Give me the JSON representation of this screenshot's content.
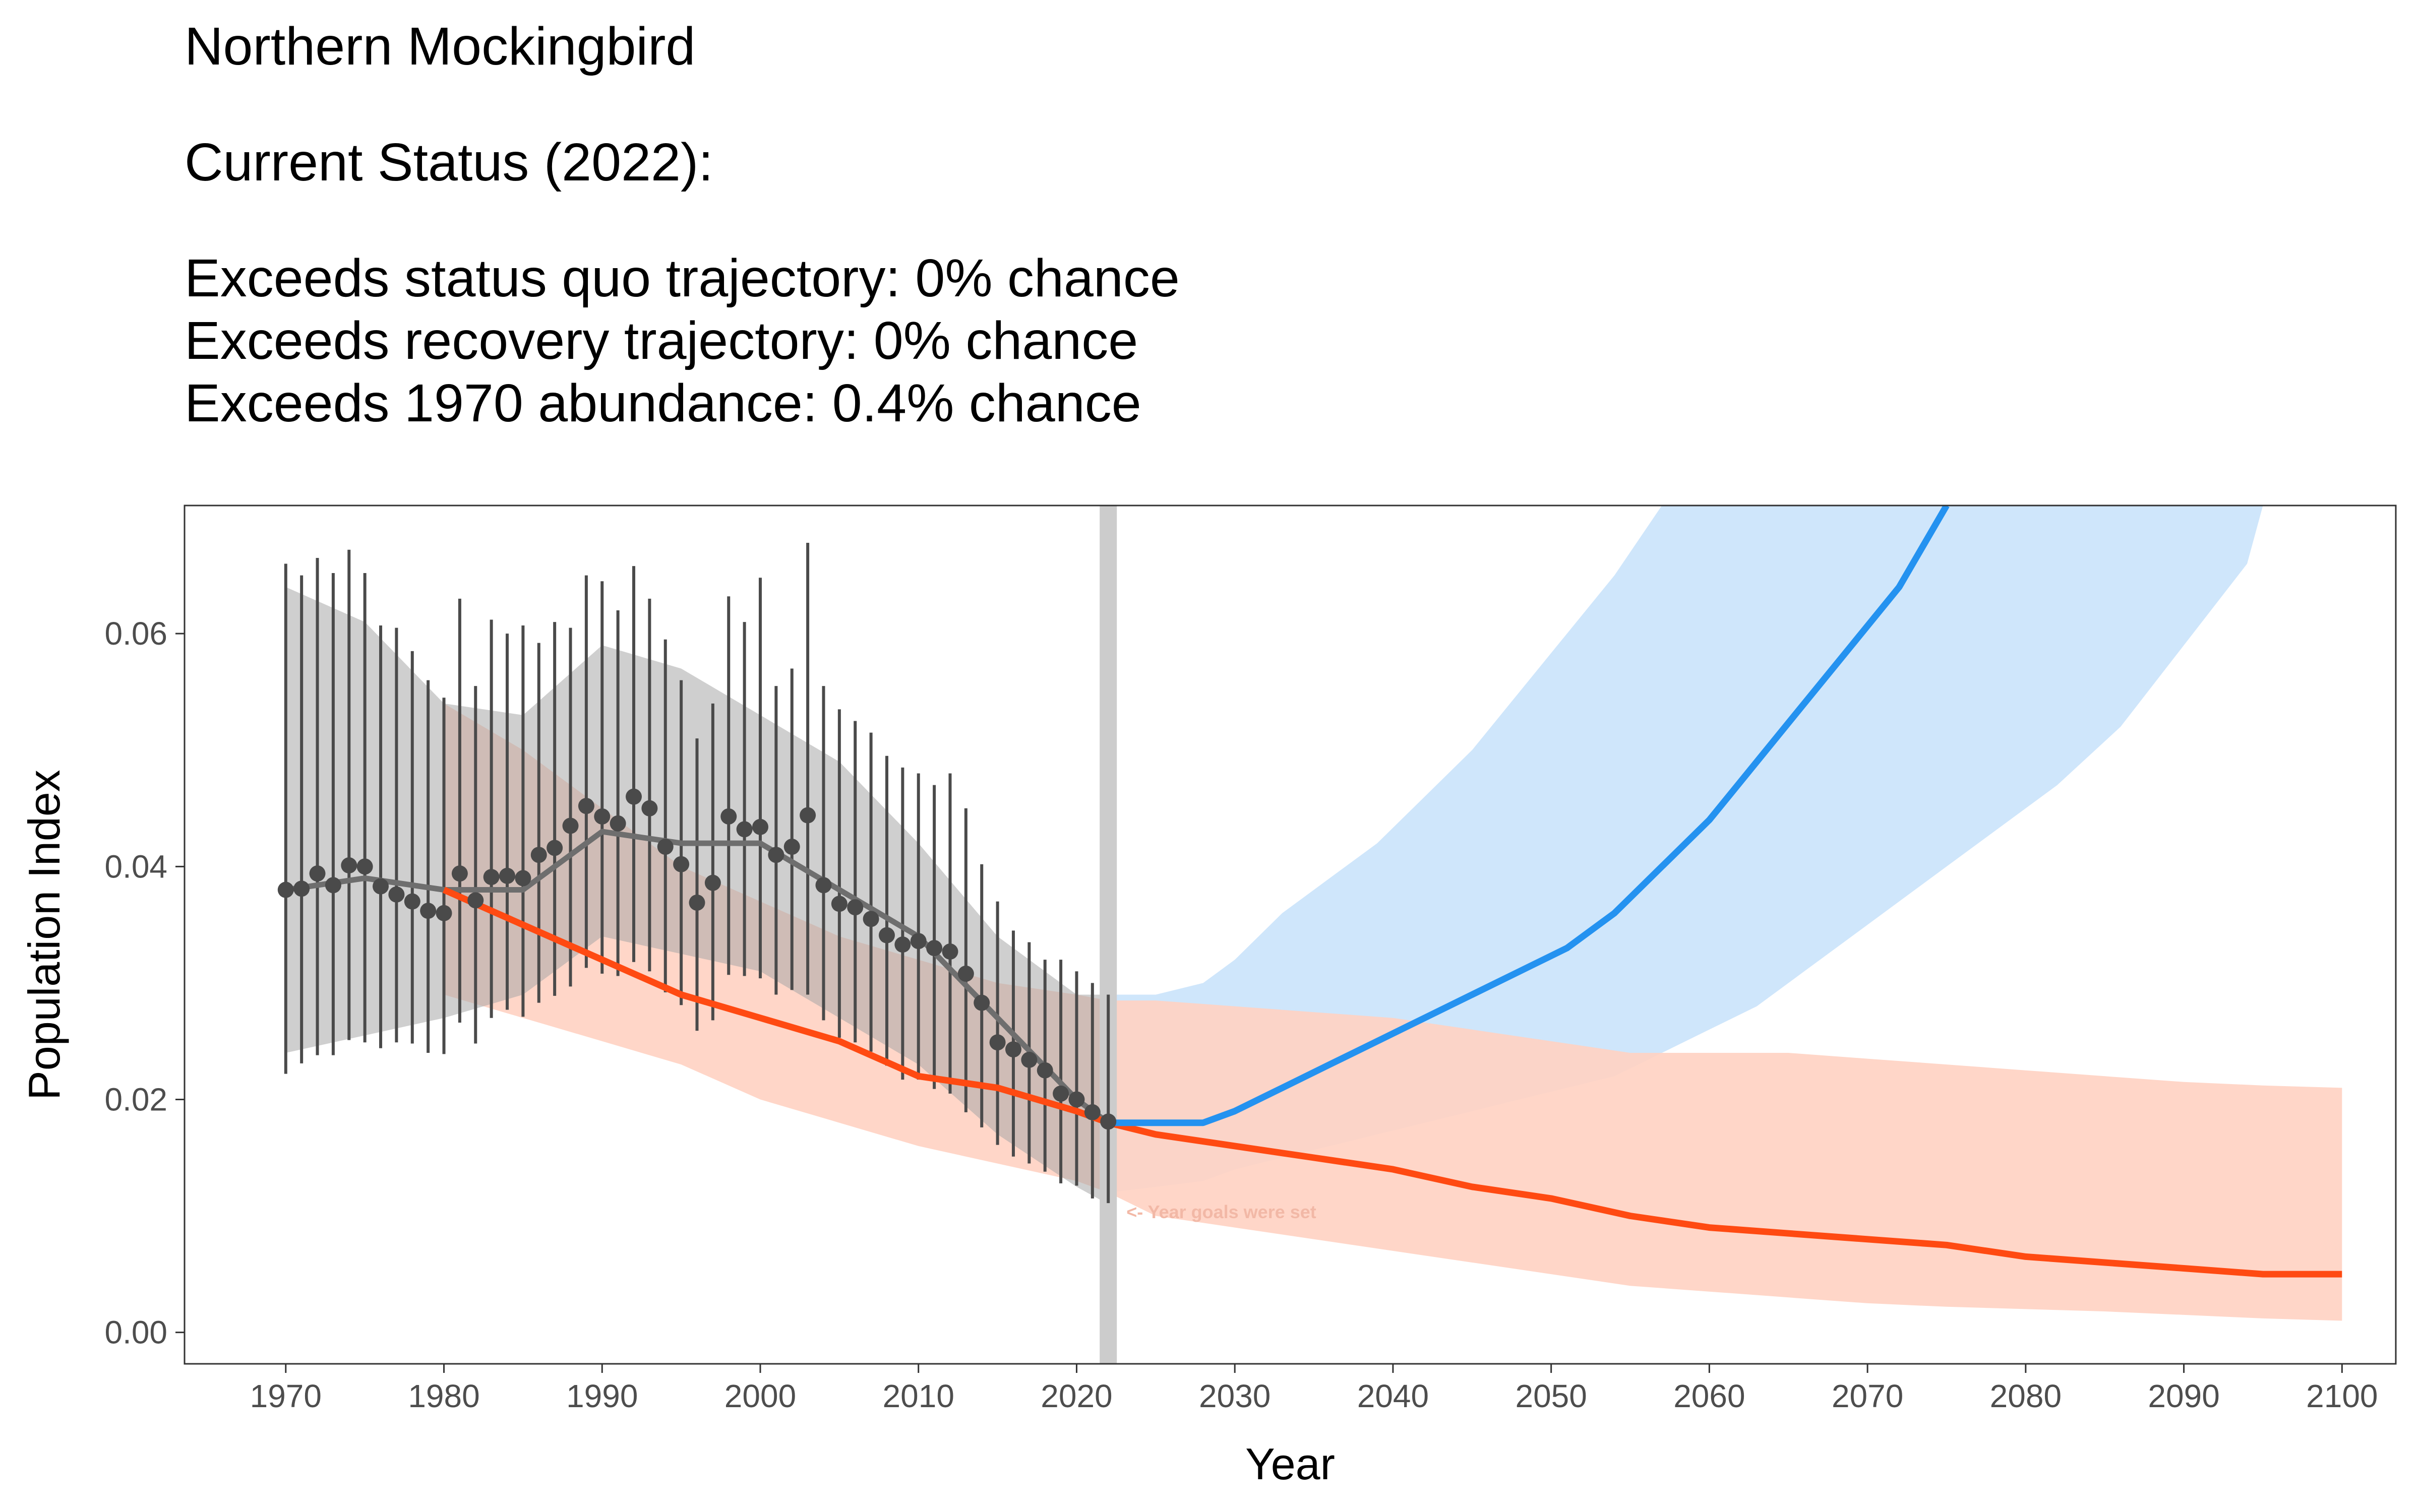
{
  "header": {
    "title": "Northern Mockingbird",
    "status_heading": "Current Status (2022):",
    "status_lines": [
      "Exceeds status quo trajectory: 0% chance",
      "Exceeds recovery trajectory: 0% chance",
      "Exceeds 1970 abundance: 0.4% chance"
    ]
  },
  "colors": {
    "observed": "#4a4a4a",
    "observed_band": "#a8a8a8",
    "status_quo": "#ff4a12",
    "status_quo_band": "#ffd2c2",
    "recovery": "#2492f0",
    "recovery_band": "#cfe6fb",
    "goal_line": "#cccccc"
  },
  "chart_data": {
    "type": "line",
    "title": "",
    "xlabel": "Year",
    "ylabel": "Population Index",
    "xlim": [
      1963.6,
      2103.4
    ],
    "ylim": [
      -0.0027,
      0.071
    ],
    "x_ticks": [
      1970,
      1980,
      1990,
      2000,
      2010,
      2020,
      2030,
      2040,
      2050,
      2060,
      2070,
      2080,
      2090,
      2100
    ],
    "y_ticks": [
      0.0,
      0.02,
      0.04,
      0.06
    ],
    "y_tick_labels": [
      "0.00",
      "0.02",
      "0.04",
      "0.06"
    ],
    "grid": false,
    "goal_year": 2022,
    "annotation": "<- Year goals were set",
    "observed_points": {
      "x": [
        1970,
        1971,
        1972,
        1973,
        1974,
        1975,
        1976,
        1977,
        1978,
        1979,
        1980,
        1981,
        1982,
        1983,
        1984,
        1985,
        1986,
        1987,
        1988,
        1989,
        1990,
        1991,
        1992,
        1993,
        1994,
        1995,
        1996,
        1997,
        1998,
        1999,
        2000,
        2001,
        2002,
        2003,
        2004,
        2005,
        2006,
        2007,
        2008,
        2009,
        2010,
        2011,
        2012,
        2013,
        2014,
        2015,
        2016,
        2017,
        2018,
        2019,
        2020,
        2021,
        2022
      ],
      "y": [
        0.038,
        0.0381,
        0.0394,
        0.0384,
        0.0401,
        0.04,
        0.0383,
        0.0376,
        0.037,
        0.0362,
        0.036,
        0.0394,
        0.0371,
        0.0391,
        0.0392,
        0.039,
        0.041,
        0.0416,
        0.0435,
        0.0452,
        0.0443,
        0.0437,
        0.046,
        0.045,
        0.0417,
        0.0402,
        0.0369,
        0.0386,
        0.0443,
        0.0432,
        0.0434,
        0.041,
        0.0417,
        0.0444,
        0.0384,
        0.0368,
        0.0365,
        0.0355,
        0.0341,
        0.0333,
        0.0336,
        0.033,
        0.0327,
        0.0308,
        0.0283,
        0.0249,
        0.0243,
        0.0234,
        0.0225,
        0.0205,
        0.02,
        0.0189,
        0.0181
      ],
      "lower": [
        0.0222,
        0.0231,
        0.0238,
        0.0238,
        0.0251,
        0.0249,
        0.0244,
        0.0249,
        0.0248,
        0.024,
        0.0239,
        0.0266,
        0.0248,
        0.027,
        0.0277,
        0.0271,
        0.0283,
        0.0289,
        0.0297,
        0.0313,
        0.0308,
        0.0306,
        0.0318,
        0.031,
        0.0292,
        0.0281,
        0.0259,
        0.0268,
        0.0307,
        0.0306,
        0.0304,
        0.029,
        0.0294,
        0.029,
        0.0268,
        0.0253,
        0.0249,
        0.0241,
        0.0229,
        0.0217,
        0.0217,
        0.0209,
        0.0205,
        0.0189,
        0.0176,
        0.0161,
        0.0151,
        0.0145,
        0.0138,
        0.0128,
        0.0126,
        0.0115,
        0.0111
      ],
      "upper": [
        0.066,
        0.065,
        0.0665,
        0.0652,
        0.0672,
        0.0652,
        0.0607,
        0.0605,
        0.0585,
        0.056,
        0.0545,
        0.063,
        0.0555,
        0.0612,
        0.06,
        0.0607,
        0.0592,
        0.061,
        0.0605,
        0.065,
        0.0645,
        0.062,
        0.0658,
        0.063,
        0.0595,
        0.056,
        0.051,
        0.054,
        0.0632,
        0.061,
        0.0648,
        0.0555,
        0.057,
        0.0678,
        0.0555,
        0.0535,
        0.0525,
        0.0515,
        0.0495,
        0.0485,
        0.048,
        0.047,
        0.048,
        0.045,
        0.0402,
        0.037,
        0.0345,
        0.0335,
        0.032,
        0.032,
        0.031,
        0.03,
        0.029
      ]
    },
    "observed_trend": {
      "x": [
        1970,
        1975,
        1980,
        1985,
        1990,
        1995,
        2000,
        2005,
        2010,
        2015,
        2020,
        2022
      ],
      "y": [
        0.038,
        0.039,
        0.038,
        0.038,
        0.043,
        0.042,
        0.042,
        0.038,
        0.034,
        0.027,
        0.02,
        0.018
      ],
      "lower": [
        0.024,
        0.0255,
        0.027,
        0.029,
        0.034,
        0.0325,
        0.031,
        0.027,
        0.023,
        0.017,
        0.0125,
        0.011
      ],
      "upper": [
        0.064,
        0.061,
        0.054,
        0.053,
        0.059,
        0.057,
        0.053,
        0.049,
        0.042,
        0.034,
        0.029,
        0.029
      ]
    },
    "series": [
      {
        "name": "",
        "x": [
          1980,
          1985,
          1990,
          1995,
          2000,
          2005,
          2010,
          2015,
          2020,
          2022,
          2025,
          2030,
          2035,
          2040,
          2045,
          2050,
          2055,
          2060,
          2065,
          2070,
          2075,
          2080,
          2085,
          2090,
          2095,
          2100
        ],
        "values": [
          0.038,
          0.035,
          0.032,
          0.029,
          0.027,
          0.025,
          0.022,
          0.021,
          0.019,
          0.018,
          0.017,
          0.016,
          0.015,
          0.014,
          0.0125,
          0.0115,
          0.01,
          0.009,
          0.0085,
          0.008,
          0.0075,
          0.0065,
          0.006,
          0.0055,
          0.005,
          0.005
        ],
        "lower": [
          0.029,
          0.027,
          0.025,
          0.023,
          0.02,
          0.018,
          0.016,
          0.0145,
          0.013,
          0.012,
          0.01,
          0.009,
          0.008,
          0.007,
          0.006,
          0.005,
          0.004,
          0.0035,
          0.003,
          0.0025,
          0.0022,
          0.002,
          0.0018,
          0.0015,
          0.0012,
          0.001
        ],
        "upper": [
          0.054,
          0.05,
          0.045,
          0.04,
          0.037,
          0.034,
          0.032,
          0.03,
          0.029,
          0.0285,
          0.0285,
          0.028,
          0.0275,
          0.027,
          0.026,
          0.025,
          0.024,
          0.024,
          0.024,
          0.0235,
          0.023,
          0.0225,
          0.022,
          0.0215,
          0.0212,
          0.021
        ]
      },
      {
        "name": "",
        "x": [
          2022,
          2025,
          2028,
          2030,
          2033,
          2036,
          2039,
          2042,
          2045,
          2048,
          2051,
          2054,
          2057,
          2060,
          2063,
          2066,
          2069,
          2072,
          2075
        ],
        "values": [
          0.018,
          0.018,
          0.018,
          0.019,
          0.021,
          0.023,
          0.025,
          0.027,
          0.029,
          0.031,
          0.033,
          0.036,
          0.04,
          0.044,
          0.049,
          0.054,
          0.059,
          0.064,
          0.071
        ],
        "lower": [
          0.012,
          0.0125,
          0.013,
          0.014,
          0.015,
          0.016,
          0.017,
          0.018,
          0.019,
          0.02,
          0.021,
          0.022,
          0.024,
          0.026,
          0.028,
          0.031,
          0.034,
          0.037,
          0.04
        ],
        "upper": [
          0.029,
          0.029,
          0.03,
          0.032,
          0.036,
          0.039,
          0.042,
          0.046,
          0.05,
          0.055,
          0.06,
          0.065,
          0.071,
          0.071,
          0.071,
          0.071,
          0.071,
          0.071,
          0.071
        ],
        "band_extension": {
          "x": [
            2078,
            2082,
            2086,
            2090,
            2094,
            2095
          ],
          "lower": [
            0.043,
            0.047,
            0.052,
            0.059,
            0.066,
            0.071
          ]
        }
      }
    ]
  }
}
